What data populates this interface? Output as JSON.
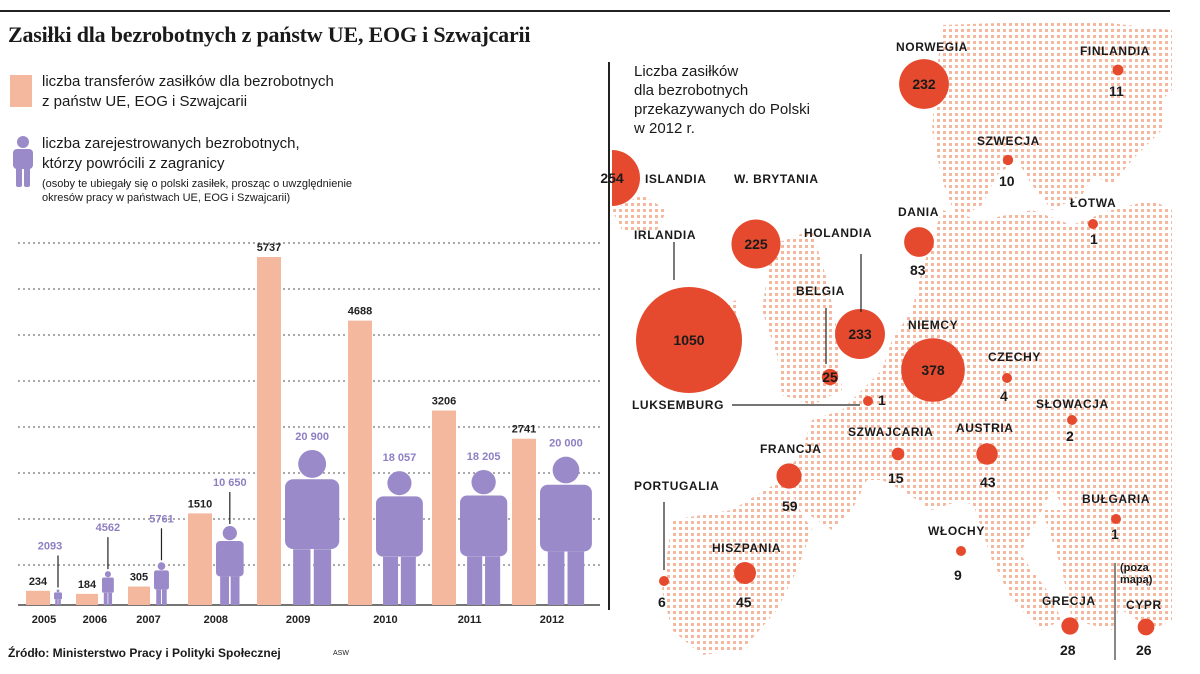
{
  "title": "Zasiłki dla bezrobotnych z państw UE, EOG i Szwajcarii",
  "legend": {
    "transfers": "liczba transferów zasiłków dla bezrobotnych\nz państw UE, EOG i Szwajcarii",
    "returnees": "liczba zarejestrowanych bezrobotnych,\nktórzy powrócili z zagranicy",
    "returnees_note": "(osoby te ubiegały się o polski zasiłek, prosząc o uwzględnienie\nokresów pracy w państwach UE, EOG i Szwajcarii)"
  },
  "source": "Źródło: Ministerstwo Pracy i Polityki Społecznej",
  "credit": "ASW",
  "colors": {
    "bar": "#f4b89f",
    "figure": "#9b8ac9",
    "figure_label": "#8e7fc4",
    "bubble": "#e64a2e",
    "map": "#f4b89f"
  },
  "chart_data": [
    {
      "type": "bar",
      "title": "",
      "xlabel": "",
      "ylabel": "",
      "categories": [
        "2005",
        "2006",
        "2007",
        "2008",
        "2009",
        "2010",
        "2011",
        "2012"
      ],
      "series": [
        {
          "name": "liczba transferów zasiłków dla bezrobotnych z państw UE, EOG i Szwajcarii",
          "values": [
            234,
            184,
            305,
            1510,
            5737,
            4688,
            3206,
            2741
          ],
          "labels": [
            "234",
            "184",
            "305",
            "1510",
            "5737",
            "4688",
            "3206",
            "2741"
          ]
        },
        {
          "name": "liczba zarejestrowanych bezrobotnych, którzy powrócili z zagranicy",
          "values": [
            2093,
            4562,
            5761,
            10650,
            20900,
            18057,
            18205,
            20000
          ],
          "labels": [
            "2093",
            "4562",
            "5761",
            "10 650",
            "20 900",
            "18 057",
            "18 205",
            "20 000"
          ]
        }
      ],
      "grid": true
    },
    {
      "type": "scatter",
      "title": "Liczba zasiłków\ndla bezrobotnych\nprzekazywanych do Polski\nw 2012 r.",
      "points": [
        {
          "country": "ISLANDIA",
          "value": 254
        },
        {
          "country": "IRLANDIA",
          "value": 1050
        },
        {
          "country": "W. BRYTANIA",
          "value": 225
        },
        {
          "country": "NORWEGIA",
          "value": 232
        },
        {
          "country": "FINLANDIA",
          "value": 11
        },
        {
          "country": "SZWECJA",
          "value": 10
        },
        {
          "country": "DANIA",
          "value": 83
        },
        {
          "country": "ŁOTWA",
          "value": 1
        },
        {
          "country": "HOLANDIA",
          "value": 233
        },
        {
          "country": "BELGIA",
          "value": 25
        },
        {
          "country": "NIEMCY",
          "value": 378
        },
        {
          "country": "LUKSEMBURG",
          "value": 1
        },
        {
          "country": "CZECHY",
          "value": 4
        },
        {
          "country": "SŁOWACJA",
          "value": 2
        },
        {
          "country": "AUSTRIA",
          "value": 43
        },
        {
          "country": "SZWAJCARIA",
          "value": 15
        },
        {
          "country": "FRANCJA",
          "value": 59
        },
        {
          "country": "PORTUGALIA",
          "value": 6
        },
        {
          "country": "HISZPANIA",
          "value": 45
        },
        {
          "country": "WŁOCHY",
          "value": 9
        },
        {
          "country": "BUŁGARIA",
          "value": 1
        },
        {
          "country": "GRECJA",
          "value": 28
        },
        {
          "country": "CYPR",
          "value": 26
        }
      ],
      "cyprus_note": "(poza\nmapą)"
    }
  ]
}
